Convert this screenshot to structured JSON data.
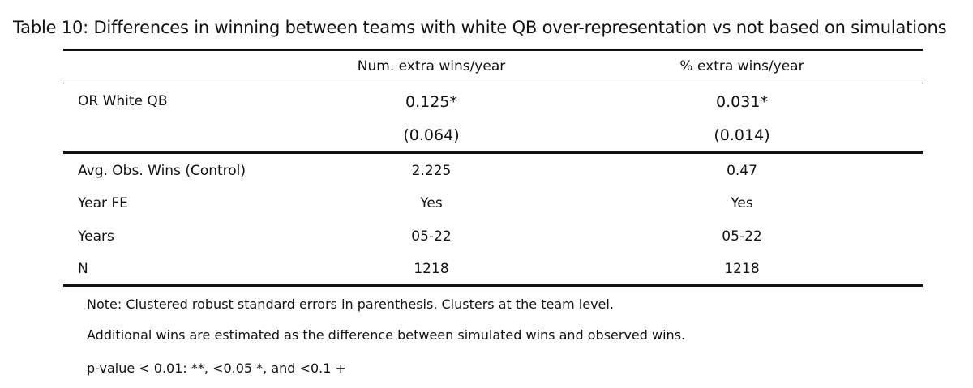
{
  "caption": "Table 10:  Differences in winning between teams with white QB over-representation vs not based on simulations",
  "columns": [
    "Num. extra wins/year",
    "% extra wins/year"
  ],
  "main_row": {
    "label": "OR White QB",
    "coef": [
      "0.125*",
      "0.031*"
    ],
    "se": [
      "(0.064)",
      "(0.014)"
    ]
  },
  "stats_rows": [
    {
      "label": "Avg. Obs. Wins (Control)",
      "values": [
        "2.225",
        "0.47"
      ]
    },
    {
      "label": "Year FE",
      "values": [
        "Yes",
        "Yes"
      ]
    },
    {
      "label": "Years",
      "values": [
        "05-22",
        "05-22"
      ]
    },
    {
      "label": "N",
      "values": [
        "1218",
        "1218"
      ]
    }
  ],
  "notes": [
    "Note: Clustered robust standard errors in parenthesis. Clusters at the team level.",
    "Additional wins are estimated as the difference between simulated wins and observed wins.",
    "p-value < 0.01: **, <0.05 *, and <0.1 +"
  ]
}
